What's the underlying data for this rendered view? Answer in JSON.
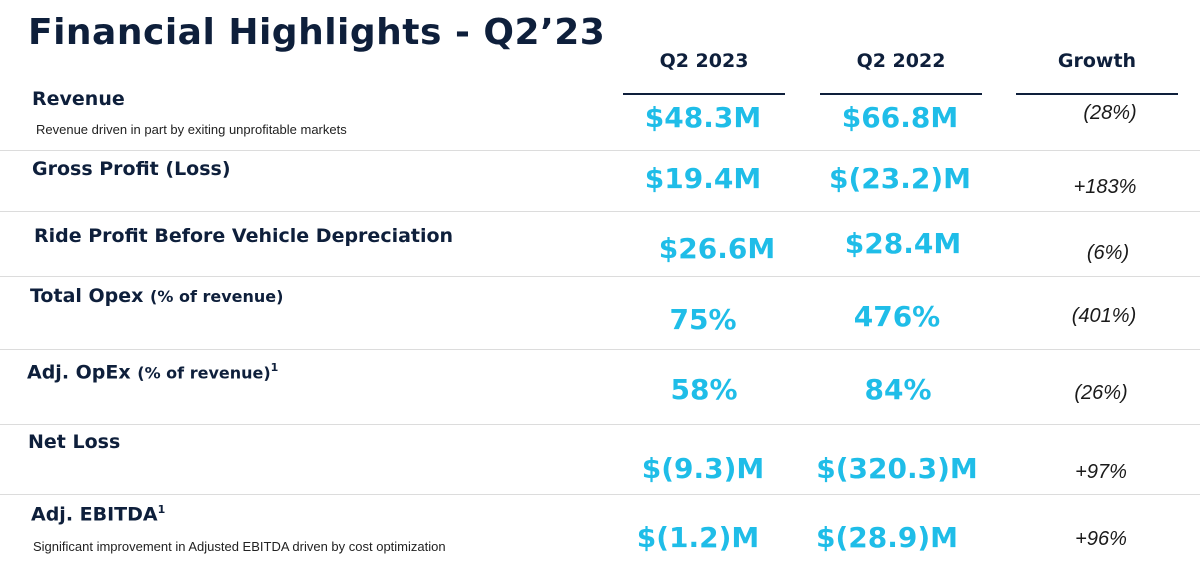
{
  "title": "Financial Highlights - Q2’23",
  "columns": [
    "Q2 2023",
    "Q2 2022",
    "Growth"
  ],
  "rows": [
    {
      "label": "Revenue",
      "suffix": "",
      "sup": "",
      "note": "Revenue driven in part by exiting unprofitable markets",
      "q2_2023": "$48.3M",
      "q2_2022": "$66.8M",
      "growth": "(28%)"
    },
    {
      "label": "Gross Profit (Loss)",
      "suffix": "",
      "sup": "",
      "note": "",
      "q2_2023": "$19.4M",
      "q2_2022": "$(23.2)M",
      "growth": "+183%"
    },
    {
      "label": "Ride Profit Before Vehicle Depreciation",
      "suffix": "",
      "sup": "",
      "note": "",
      "q2_2023": "$26.6M",
      "q2_2022": "$28.4M",
      "growth": "(6%)"
    },
    {
      "label": "Total Opex",
      "suffix": "(% of revenue)",
      "sup": "",
      "note": "",
      "q2_2023": "75%",
      "q2_2022": "476%",
      "growth": "(401%)"
    },
    {
      "label": "Adj. OpEx",
      "suffix": "(% of revenue)",
      "sup": "1",
      "note": "",
      "q2_2023": "58%",
      "q2_2022": "84%",
      "growth": "(26%)"
    },
    {
      "label": "Net Loss",
      "suffix": "",
      "sup": "",
      "note": "",
      "q2_2023": "$(9.3)M",
      "q2_2022": "$(320.3)M",
      "growth": "+97%"
    },
    {
      "label": "Adj. EBITDA",
      "suffix": "",
      "sup": "1",
      "note": "Significant improvement in Adjusted EBITDA driven by cost optimization",
      "q2_2023": "$(1.2)M",
      "q2_2022": "$(28.9)M",
      "growth": "+96%"
    }
  ],
  "colors": {
    "navy": "#0e1f3b",
    "accent": "#1fbde8"
  }
}
